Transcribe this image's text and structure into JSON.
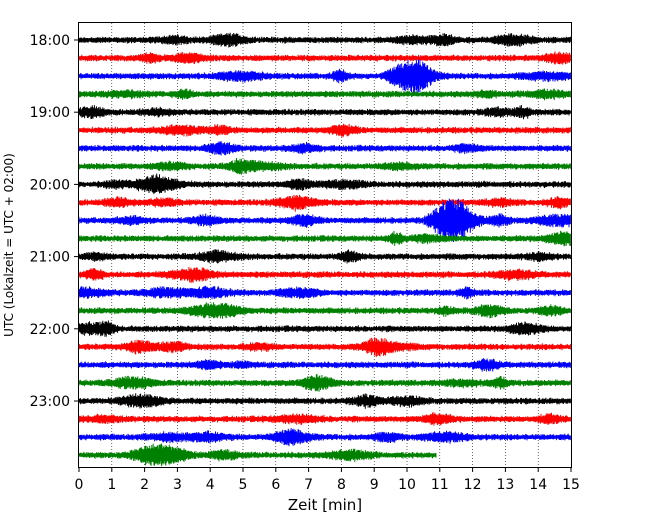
{
  "chart_data": {
    "type": "line",
    "title": "",
    "xlabel": "Zeit  [min]",
    "ylabel": "UTC (Lokalzeit = UTC + 02:00)",
    "xlim": [
      0,
      15
    ],
    "x_ticks": [
      "0",
      "1",
      "2",
      "3",
      "4",
      "5",
      "6",
      "7",
      "8",
      "9",
      "10",
      "11",
      "12",
      "13",
      "14",
      "15"
    ],
    "y_ticks": [
      "18:00",
      "19:00",
      "20:00",
      "21:00",
      "22:00",
      "23:00"
    ],
    "grid": "vertical-dotted",
    "trace_colors": [
      "#000000",
      "#ff0000",
      "#0000ff",
      "#008000"
    ],
    "rows": [
      {
        "start": "18:00",
        "color": "#000000",
        "end_min": 15
      },
      {
        "start": "18:15",
        "color": "#ff0000",
        "end_min": 15
      },
      {
        "start": "18:30",
        "color": "#0000ff",
        "end_min": 15,
        "events": [
          {
            "t": 10.1,
            "amp": 14
          }
        ]
      },
      {
        "start": "18:45",
        "color": "#008000",
        "end_min": 15
      },
      {
        "start": "19:00",
        "color": "#000000",
        "end_min": 15
      },
      {
        "start": "19:15",
        "color": "#ff0000",
        "end_min": 15
      },
      {
        "start": "19:30",
        "color": "#0000ff",
        "end_min": 15
      },
      {
        "start": "19:45",
        "color": "#008000",
        "end_min": 15
      },
      {
        "start": "20:00",
        "color": "#000000",
        "end_min": 15
      },
      {
        "start": "20:15",
        "color": "#ff0000",
        "end_min": 15
      },
      {
        "start": "20:30",
        "color": "#0000ff",
        "end_min": 15,
        "events": [
          {
            "t": 11.4,
            "amp": 20
          }
        ]
      },
      {
        "start": "20:45",
        "color": "#008000",
        "end_min": 15
      },
      {
        "start": "21:00",
        "color": "#000000",
        "end_min": 15
      },
      {
        "start": "21:15",
        "color": "#ff0000",
        "end_min": 15
      },
      {
        "start": "21:30",
        "color": "#0000ff",
        "end_min": 15
      },
      {
        "start": "21:45",
        "color": "#008000",
        "end_min": 15
      },
      {
        "start": "22:00",
        "color": "#000000",
        "end_min": 15
      },
      {
        "start": "22:15",
        "color": "#ff0000",
        "end_min": 15
      },
      {
        "start": "22:30",
        "color": "#0000ff",
        "end_min": 15
      },
      {
        "start": "22:45",
        "color": "#008000",
        "end_min": 15
      },
      {
        "start": "23:00",
        "color": "#000000",
        "end_min": 15
      },
      {
        "start": "23:15",
        "color": "#ff0000",
        "end_min": 15
      },
      {
        "start": "23:30",
        "color": "#0000ff",
        "end_min": 15
      },
      {
        "start": "23:45",
        "color": "#008000",
        "end_min": 10.9
      }
    ]
  }
}
